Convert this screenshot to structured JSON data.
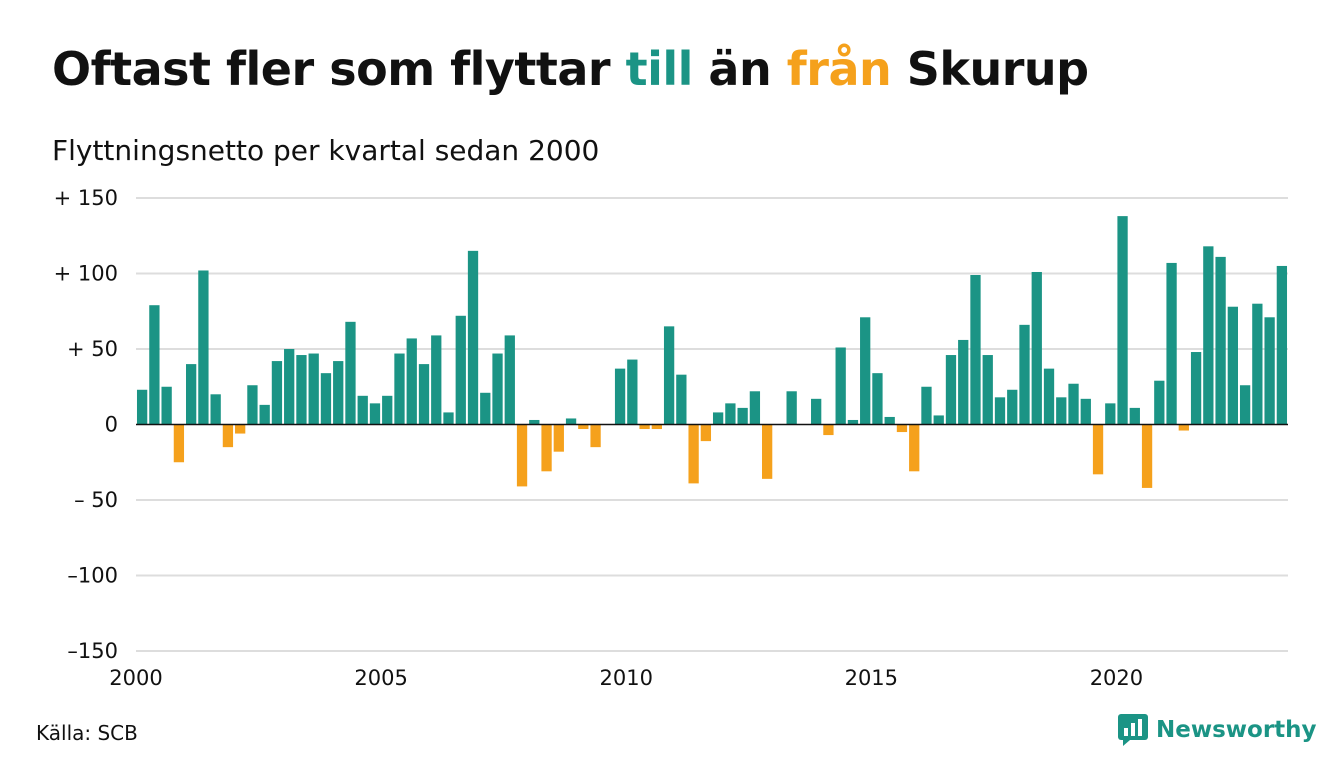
{
  "header": {
    "title_part1": "Oftast fler som flyttar ",
    "title_till": "till",
    "title_part2": " än ",
    "title_fran": "från",
    "title_part3": " Skurup",
    "subtitle": "Flyttningsnetto per kvartal sedan 2000"
  },
  "footer": {
    "source": "Källa: SCB",
    "brand": "Newsworthy",
    "brand_icon": "newsworthy-logo-icon"
  },
  "colors": {
    "positive": "#1b9485",
    "negative": "#f5a11c",
    "grid": "#dddddd",
    "text": "#111111"
  },
  "chart_data": {
    "type": "bar",
    "title": "Oftast fler som flyttar till än från Skurup",
    "subtitle": "Flyttningsnetto per kvartal sedan 2000",
    "xlabel": "",
    "ylabel": "",
    "ylim": [
      -150,
      150
    ],
    "yticks": [
      150,
      100,
      50,
      0,
      -50,
      -100,
      -150
    ],
    "ytick_labels": [
      "+ 150",
      "+ 100",
      "+  50",
      "0",
      "– 50",
      "–100",
      "–150"
    ],
    "xticks": [
      2000,
      2005,
      2010,
      2015,
      2020
    ],
    "xtick_labels": [
      "2000",
      "2005",
      "2010",
      "2015",
      "2020"
    ],
    "grid": true,
    "legend": "none",
    "start": "2000 Q1",
    "frequency": "quarterly",
    "values": [
      23,
      79,
      25,
      -25,
      40,
      102,
      20,
      -15,
      -6,
      26,
      13,
      42,
      50,
      46,
      47,
      34,
      42,
      68,
      19,
      14,
      19,
      47,
      57,
      40,
      59,
      8,
      72,
      115,
      21,
      47,
      59,
      -41,
      3,
      -31,
      -18,
      4,
      -3,
      -15,
      0,
      37,
      43,
      -3,
      -3,
      65,
      33,
      -39,
      -11,
      8,
      14,
      11,
      22,
      -36,
      0,
      22,
      0,
      17,
      -7,
      51,
      3,
      71,
      34,
      5,
      -5,
      -31,
      25,
      6,
      46,
      56,
      99,
      46,
      18,
      23,
      66,
      101,
      37,
      18,
      27,
      17,
      -33,
      14,
      138,
      11,
      -42,
      29,
      107,
      -4,
      48,
      118,
      111,
      78,
      26,
      80,
      71,
      105
    ]
  }
}
